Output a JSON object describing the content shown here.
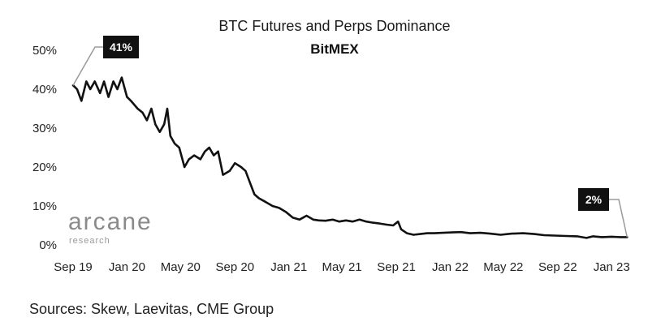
{
  "chart_data": {
    "type": "line",
    "title": "BTC Futures and Perps Dominance",
    "subtitle": "BitMEX",
    "ylim": [
      0,
      50
    ],
    "y_ticks": [
      {
        "value": 0,
        "label": "0%"
      },
      {
        "value": 10,
        "label": "10%"
      },
      {
        "value": 20,
        "label": "20%"
      },
      {
        "value": 30,
        "label": "30%"
      },
      {
        "value": 40,
        "label": "40%"
      },
      {
        "value": 50,
        "label": "50%"
      }
    ],
    "xlim": [
      "2019-09-01",
      "2023-02-10"
    ],
    "x_ticks": [
      {
        "value": "2019-09-01",
        "label": "Sep 19"
      },
      {
        "value": "2020-01-01",
        "label": "Jan 20"
      },
      {
        "value": "2020-05-01",
        "label": "May 20"
      },
      {
        "value": "2020-09-01",
        "label": "Sep 20"
      },
      {
        "value": "2021-01-01",
        "label": "Jan 21"
      },
      {
        "value": "2021-05-01",
        "label": "May 21"
      },
      {
        "value": "2021-09-01",
        "label": "Sep 21"
      },
      {
        "value": "2022-01-01",
        "label": "Jan 22"
      },
      {
        "value": "2022-05-01",
        "label": "May 22"
      },
      {
        "value": "2022-09-01",
        "label": "Sep 22"
      },
      {
        "value": "2023-01-01",
        "label": "Jan 23"
      }
    ],
    "series": [
      {
        "color": "#111111",
        "points": [
          [
            "2019-09-01",
            41
          ],
          [
            "2019-09-10",
            40
          ],
          [
            "2019-09-20",
            37
          ],
          [
            "2019-10-01",
            42
          ],
          [
            "2019-10-10",
            40
          ],
          [
            "2019-10-20",
            42
          ],
          [
            "2019-11-01",
            39
          ],
          [
            "2019-11-10",
            42
          ],
          [
            "2019-11-20",
            38
          ],
          [
            "2019-12-01",
            42
          ],
          [
            "2019-12-10",
            40
          ],
          [
            "2019-12-20",
            43
          ],
          [
            "2020-01-01",
            38
          ],
          [
            "2020-01-10",
            37
          ],
          [
            "2020-01-25",
            35
          ],
          [
            "2020-02-05",
            34
          ],
          [
            "2020-02-15",
            32
          ],
          [
            "2020-02-25",
            35
          ],
          [
            "2020-03-05",
            31
          ],
          [
            "2020-03-15",
            29
          ],
          [
            "2020-03-25",
            31
          ],
          [
            "2020-04-01",
            35
          ],
          [
            "2020-04-08",
            28
          ],
          [
            "2020-04-18",
            26
          ],
          [
            "2020-04-28",
            25
          ],
          [
            "2020-05-10",
            20
          ],
          [
            "2020-05-20",
            22
          ],
          [
            "2020-06-01",
            23
          ],
          [
            "2020-06-15",
            22
          ],
          [
            "2020-06-25",
            24
          ],
          [
            "2020-07-05",
            25
          ],
          [
            "2020-07-15",
            23
          ],
          [
            "2020-07-25",
            24
          ],
          [
            "2020-08-05",
            18
          ],
          [
            "2020-08-20",
            19
          ],
          [
            "2020-09-01",
            21
          ],
          [
            "2020-09-15",
            20
          ],
          [
            "2020-09-25",
            19
          ],
          [
            "2020-10-05",
            16
          ],
          [
            "2020-10-15",
            13
          ],
          [
            "2020-10-25",
            12
          ],
          [
            "2020-11-10",
            11
          ],
          [
            "2020-11-25",
            10
          ],
          [
            "2020-12-10",
            9.5
          ],
          [
            "2020-12-25",
            8.5
          ],
          [
            "2021-01-10",
            7
          ],
          [
            "2021-01-25",
            6.5
          ],
          [
            "2021-02-10",
            7.5
          ],
          [
            "2021-02-25",
            6.5
          ],
          [
            "2021-03-10",
            6.3
          ],
          [
            "2021-03-25",
            6.2
          ],
          [
            "2021-04-10",
            6.5
          ],
          [
            "2021-04-25",
            6.0
          ],
          [
            "2021-05-10",
            6.3
          ],
          [
            "2021-05-25",
            6.0
          ],
          [
            "2021-06-10",
            6.5
          ],
          [
            "2021-06-25",
            6.0
          ],
          [
            "2021-07-10",
            5.7
          ],
          [
            "2021-07-25",
            5.5
          ],
          [
            "2021-08-10",
            5.2
          ],
          [
            "2021-08-25",
            5.0
          ],
          [
            "2021-09-05",
            6.0
          ],
          [
            "2021-09-12",
            4.0
          ],
          [
            "2021-09-25",
            3.0
          ],
          [
            "2021-10-10",
            2.6
          ],
          [
            "2021-10-25",
            2.8
          ],
          [
            "2021-11-10",
            3.0
          ],
          [
            "2021-11-25",
            3.0
          ],
          [
            "2021-12-15",
            3.1
          ],
          [
            "2022-01-05",
            3.2
          ],
          [
            "2022-01-25",
            3.3
          ],
          [
            "2022-02-15",
            3.0
          ],
          [
            "2022-03-10",
            3.1
          ],
          [
            "2022-04-01",
            2.9
          ],
          [
            "2022-04-25",
            2.6
          ],
          [
            "2022-05-20",
            2.9
          ],
          [
            "2022-06-15",
            3.0
          ],
          [
            "2022-07-10",
            2.8
          ],
          [
            "2022-08-01",
            2.5
          ],
          [
            "2022-08-25",
            2.4
          ],
          [
            "2022-09-20",
            2.3
          ],
          [
            "2022-10-15",
            2.2
          ],
          [
            "2022-11-05",
            1.8
          ],
          [
            "2022-11-20",
            2.2
          ],
          [
            "2022-12-10",
            2.0
          ],
          [
            "2023-01-01",
            2.1
          ],
          [
            "2023-01-20",
            2.0
          ],
          [
            "2023-02-05",
            2.0
          ]
        ]
      }
    ],
    "annotations": [
      {
        "label": "41%",
        "date": "2019-09-01",
        "value": 41
      },
      {
        "label": "2%",
        "date": "2023-02-05",
        "value": 2
      }
    ]
  },
  "watermark": {
    "main": "arcane",
    "sub": "research"
  },
  "footer": {
    "sources": "Sources: Skew, Laevitas, CME Group"
  }
}
